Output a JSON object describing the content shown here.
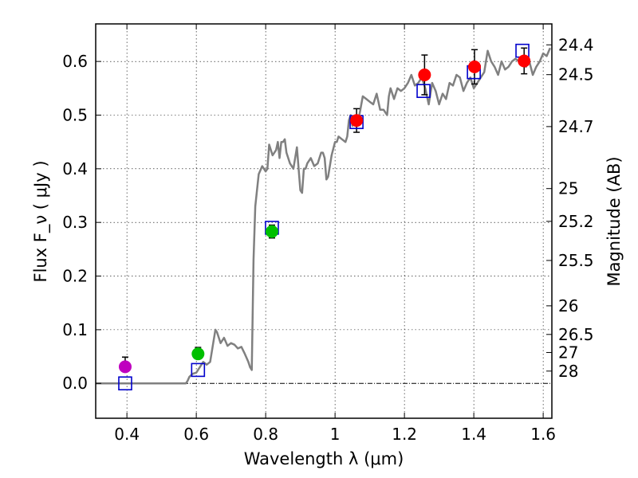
{
  "chart_data": {
    "type": "scatter",
    "xlabel": "Wavelength  λ (μm)",
    "ylabel": "Flux  F_ν  ( μJy )",
    "y2label": "Magnitude (AB)",
    "xlim": [
      0.31,
      1.625
    ],
    "ylim": [
      -0.065,
      0.67
    ],
    "grid": true,
    "x_ticks": [
      0.4,
      0.6,
      0.8,
      1.0,
      1.2,
      1.4,
      1.6
    ],
    "x_tick_labels": [
      "0.4",
      "0.6",
      "0.8",
      "1",
      "1.2",
      "1.4",
      "1.6"
    ],
    "y_ticks": [
      0.0,
      0.1,
      0.2,
      0.3,
      0.4,
      0.5,
      0.6
    ],
    "y_tick_labels": [
      "0.0",
      "0.1",
      "0.2",
      "0.3",
      "0.4",
      "0.5",
      "0.6"
    ],
    "magnitude_ticks": [
      "24.4",
      "24.5",
      "24.7",
      "25",
      "25.2",
      "25.5",
      "26",
      "26.5",
      "27",
      "28"
    ],
    "colors": {
      "model": "#808080",
      "model_points": "#0000cc",
      "purple": "#bf00bf",
      "green": "#00bf00",
      "red": "#ff0000",
      "errorbar": "#000000",
      "zero_line": "#000000"
    },
    "model_spectrum": {
      "x": [
        0.31,
        0.57,
        0.575,
        0.58,
        0.59,
        0.6,
        0.61,
        0.62,
        0.63,
        0.64,
        0.65,
        0.655,
        0.66,
        0.67,
        0.68,
        0.69,
        0.7,
        0.71,
        0.72,
        0.73,
        0.74,
        0.75,
        0.755,
        0.76,
        0.765,
        0.77,
        0.78,
        0.79,
        0.8,
        0.805,
        0.81,
        0.82,
        0.83,
        0.835,
        0.84,
        0.845,
        0.85,
        0.855,
        0.86,
        0.87,
        0.88,
        0.89,
        0.9,
        0.905,
        0.91,
        0.915,
        0.92,
        0.93,
        0.94,
        0.95,
        0.96,
        0.965,
        0.97,
        0.975,
        0.98,
        0.99,
        1.0,
        1.005,
        1.01,
        1.02,
        1.03,
        1.035,
        1.04,
        1.045,
        1.05,
        1.06,
        1.07,
        1.08,
        1.09,
        1.1,
        1.11,
        1.12,
        1.13,
        1.14,
        1.15,
        1.155,
        1.16,
        1.17,
        1.18,
        1.19,
        1.2,
        1.21,
        1.22,
        1.23,
        1.24,
        1.25,
        1.26,
        1.27,
        1.28,
        1.29,
        1.3,
        1.31,
        1.32,
        1.33,
        1.34,
        1.35,
        1.36,
        1.37,
        1.38,
        1.39,
        1.4,
        1.41,
        1.42,
        1.43,
        1.44,
        1.45,
        1.46,
        1.47,
        1.48,
        1.49,
        1.5,
        1.51,
        1.52,
        1.53,
        1.54,
        1.55,
        1.56,
        1.57,
        1.58,
        1.59,
        1.6,
        1.61,
        1.62
      ],
      "y": [
        0.0,
        0.0,
        0.005,
        0.012,
        0.018,
        0.02,
        0.03,
        0.04,
        0.035,
        0.04,
        0.08,
        0.1,
        0.095,
        0.075,
        0.085,
        0.07,
        0.075,
        0.072,
        0.065,
        0.068,
        0.055,
        0.04,
        0.03,
        0.025,
        0.23,
        0.33,
        0.39,
        0.405,
        0.395,
        0.4,
        0.445,
        0.425,
        0.435,
        0.45,
        0.42,
        0.45,
        0.45,
        0.455,
        0.43,
        0.41,
        0.4,
        0.44,
        0.36,
        0.355,
        0.4,
        0.4,
        0.41,
        0.42,
        0.405,
        0.41,
        0.43,
        0.43,
        0.42,
        0.38,
        0.385,
        0.425,
        0.45,
        0.45,
        0.46,
        0.455,
        0.45,
        0.46,
        0.49,
        0.5,
        0.48,
        0.49,
        0.5,
        0.535,
        0.53,
        0.525,
        0.52,
        0.54,
        0.51,
        0.51,
        0.5,
        0.535,
        0.55,
        0.53,
        0.55,
        0.545,
        0.55,
        0.56,
        0.575,
        0.555,
        0.56,
        0.57,
        0.55,
        0.52,
        0.56,
        0.545,
        0.52,
        0.54,
        0.53,
        0.56,
        0.555,
        0.575,
        0.57,
        0.545,
        0.56,
        0.57,
        0.55,
        0.56,
        0.57,
        0.58,
        0.62,
        0.6,
        0.59,
        0.575,
        0.6,
        0.585,
        0.59,
        0.6,
        0.605,
        0.6,
        0.61,
        0.59,
        0.6,
        0.575,
        0.59,
        0.6,
        0.615,
        0.61,
        0.625
      ]
    },
    "model_points": {
      "x": [
        0.395,
        0.605,
        0.818,
        1.062,
        1.255,
        1.4,
        1.54
      ],
      "y": [
        0.0,
        0.025,
        0.29,
        0.487,
        0.545,
        0.58,
        0.62
      ]
    },
    "observations": [
      {
        "x": 0.395,
        "y": 0.031,
        "err_low": 0.0,
        "err_high": 0.018,
        "color": "purple"
      },
      {
        "x": 0.605,
        "y": 0.055,
        "err_low": 0.0,
        "err_high": 0.012,
        "color": "green"
      },
      {
        "x": 0.818,
        "y": 0.283,
        "err_low": 0.012,
        "err_high": 0.012,
        "color": "green"
      },
      {
        "x": 1.062,
        "y": 0.49,
        "err_low": 0.022,
        "err_high": 0.022,
        "color": "red"
      },
      {
        "x": 1.258,
        "y": 0.575,
        "err_low": 0.037,
        "err_high": 0.037,
        "color": "red"
      },
      {
        "x": 1.402,
        "y": 0.59,
        "err_low": 0.032,
        "err_high": 0.032,
        "color": "red"
      },
      {
        "x": 1.545,
        "y": 0.601,
        "err_low": 0.024,
        "err_high": 0.024,
        "color": "red"
      }
    ]
  }
}
